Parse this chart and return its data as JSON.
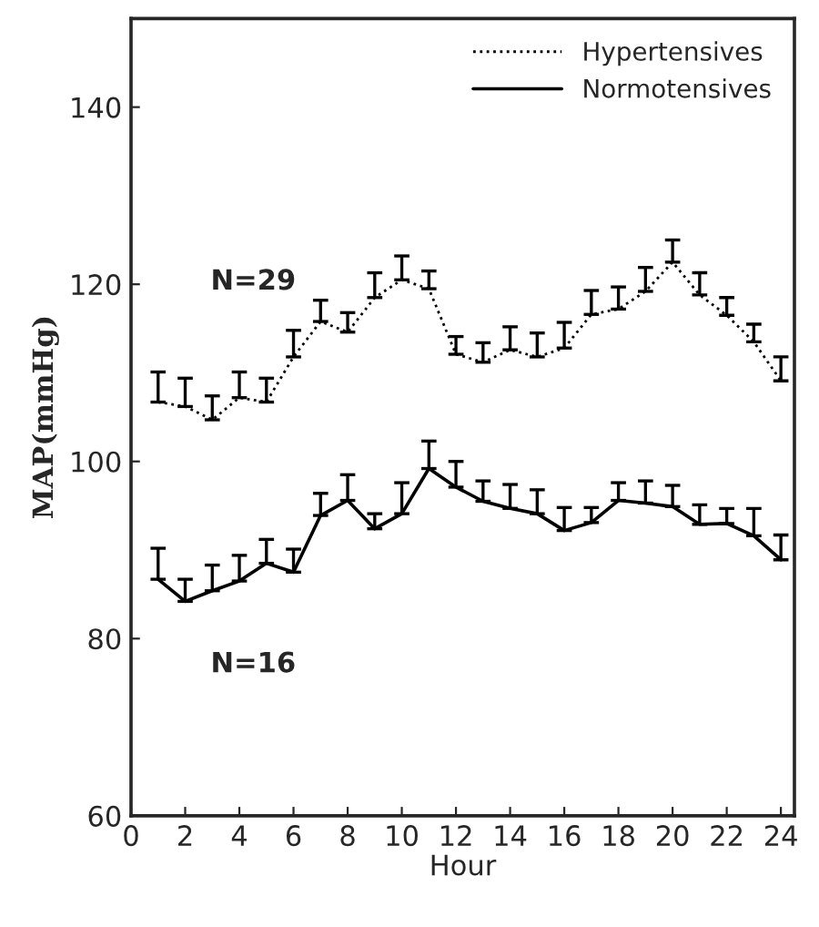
{
  "chart_data": {
    "type": "line",
    "xlabel": "Hour",
    "ylabel": "MAP(mmHg)",
    "x": [
      1,
      2,
      3,
      4,
      5,
      6,
      7,
      8,
      9,
      10,
      11,
      12,
      13,
      14,
      15,
      16,
      17,
      18,
      19,
      20,
      21,
      22,
      23,
      24
    ],
    "series": [
      {
        "name": "Hypertensives",
        "color": "#000000",
        "line_style": "dotted",
        "values": [
          106.7,
          106.2,
          104.7,
          107.2,
          106.7,
          111.8,
          115.8,
          114.6,
          118.5,
          120.5,
          119.5,
          112.1,
          111.2,
          112.6,
          111.8,
          112.8,
          116.6,
          117.2,
          119.2,
          122.5,
          118.8,
          116.5,
          113.5,
          109.1
        ],
        "errors": [
          [
            106.7,
            110.1
          ],
          [
            106.2,
            109.4
          ],
          [
            104.7,
            107.4
          ],
          [
            107.2,
            110.1
          ],
          [
            106.7,
            109.4
          ],
          [
            111.8,
            114.8
          ],
          [
            115.8,
            118.2
          ],
          [
            114.6,
            116.8
          ],
          [
            118.5,
            121.3
          ],
          [
            120.5,
            123.2
          ],
          [
            119.5,
            121.5
          ],
          [
            112.1,
            114.1
          ],
          [
            111.2,
            113.4
          ],
          [
            112.6,
            115.2
          ],
          [
            111.8,
            114.5
          ],
          [
            112.8,
            115.7
          ],
          [
            116.6,
            119.3
          ],
          [
            117.2,
            119.7
          ],
          [
            119.2,
            121.9
          ],
          [
            122.5,
            125.0
          ],
          [
            118.8,
            121.3
          ],
          [
            116.5,
            118.5
          ],
          [
            113.5,
            115.5
          ],
          [
            109.1,
            111.8
          ]
        ]
      },
      {
        "name": "Normotensives",
        "color": "#000000",
        "line_style": "solid",
        "values": [
          86.7,
          84.2,
          85.4,
          86.5,
          88.5,
          87.5,
          93.9,
          95.6,
          92.4,
          94.1,
          99.2,
          97.1,
          95.5,
          94.7,
          94.1,
          92.2,
          93.1,
          95.6,
          95.3,
          94.9,
          92.9,
          93.0,
          91.6,
          88.9
        ],
        "errors": [
          [
            86.7,
            90.2
          ],
          [
            84.2,
            86.7
          ],
          [
            85.4,
            88.3
          ],
          [
            86.5,
            89.4
          ],
          [
            88.5,
            91.2
          ],
          [
            87.5,
            90.1
          ],
          [
            93.9,
            96.4
          ],
          [
            95.6,
            98.5
          ],
          [
            92.4,
            94.1
          ],
          [
            94.1,
            97.6
          ],
          [
            99.2,
            102.3
          ],
          [
            97.1,
            100.0
          ],
          [
            95.5,
            97.8
          ],
          [
            94.7,
            97.4
          ],
          [
            94.1,
            96.8
          ],
          [
            92.2,
            94.8
          ],
          [
            93.1,
            94.8
          ],
          [
            95.6,
            97.6
          ],
          [
            95.3,
            97.8
          ],
          [
            94.9,
            97.3
          ],
          [
            92.9,
            95.1
          ],
          [
            93.0,
            94.7
          ],
          [
            91.6,
            94.7
          ],
          [
            88.9,
            91.7
          ]
        ]
      }
    ],
    "annotations": [
      "N=29",
      "N=16"
    ],
    "xlim": [
      0,
      24.5
    ],
    "xticks": [
      0,
      2,
      4,
      6,
      8,
      10,
      12,
      14,
      16,
      18,
      20,
      22,
      24
    ],
    "ylim": [
      60,
      150
    ],
    "yticks": [
      60,
      80,
      100,
      120,
      140
    ],
    "grid": false,
    "legend": "top right",
    "marker": "none"
  }
}
